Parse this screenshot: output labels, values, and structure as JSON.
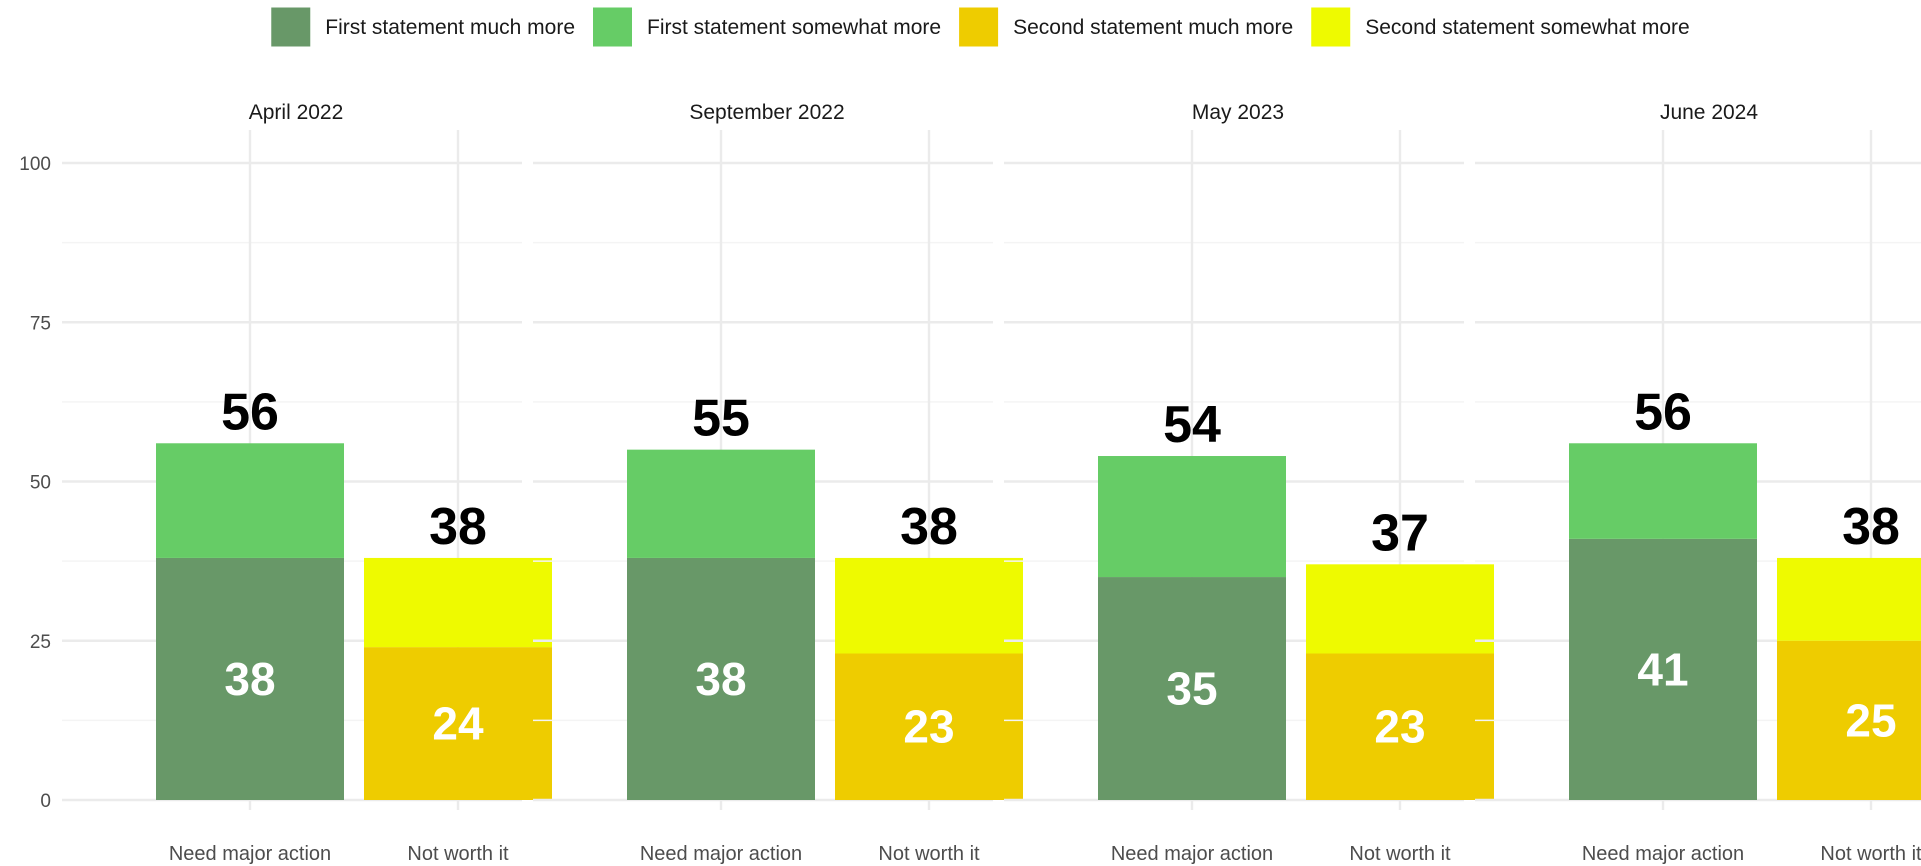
{
  "legend": {
    "items": [
      {
        "key": "fm",
        "label": "First statement much more",
        "color": "#689868"
      },
      {
        "key": "fs",
        "label": "First statement somewhat more",
        "color": "#66cc66"
      },
      {
        "key": "sm",
        "label": "Second statement much more",
        "color": "#eecc00"
      },
      {
        "key": "ss",
        "label": "Second statement somewhat more",
        "color": "#eefa00"
      }
    ]
  },
  "chart_data": {
    "type": "bar",
    "stacked": true,
    "faceted": true,
    "categories": [
      "Need major action",
      "Not worth it"
    ],
    "ylim": [
      0,
      100
    ],
    "yticks": [
      0,
      25,
      50,
      75,
      100
    ],
    "grid": true,
    "legend_position": "top",
    "facets": [
      {
        "title": "April 2022",
        "bars": [
          {
            "category": "Need major action",
            "segments": [
              {
                "key": "fm",
                "value": 38
              },
              {
                "key": "fs",
                "value": 18
              }
            ],
            "total": 56,
            "inner_label": 38
          },
          {
            "category": "Not worth it",
            "segments": [
              {
                "key": "sm",
                "value": 24
              },
              {
                "key": "ss",
                "value": 14
              }
            ],
            "total": 38,
            "inner_label": 24
          }
        ]
      },
      {
        "title": "September 2022",
        "bars": [
          {
            "category": "Need major action",
            "segments": [
              {
                "key": "fm",
                "value": 38
              },
              {
                "key": "fs",
                "value": 17
              }
            ],
            "total": 55,
            "inner_label": 38
          },
          {
            "category": "Not worth it",
            "segments": [
              {
                "key": "sm",
                "value": 23
              },
              {
                "key": "ss",
                "value": 15
              }
            ],
            "total": 38,
            "inner_label": 23
          }
        ]
      },
      {
        "title": "May 2023",
        "bars": [
          {
            "category": "Need major action",
            "segments": [
              {
                "key": "fm",
                "value": 35
              },
              {
                "key": "fs",
                "value": 19
              }
            ],
            "total": 54,
            "inner_label": 35
          },
          {
            "category": "Not worth it",
            "segments": [
              {
                "key": "sm",
                "value": 23
              },
              {
                "key": "ss",
                "value": 14
              }
            ],
            "total": 37,
            "inner_label": 23
          }
        ]
      },
      {
        "title": "June 2024",
        "bars": [
          {
            "category": "Need major action",
            "segments": [
              {
                "key": "fm",
                "value": 41
              },
              {
                "key": "fs",
                "value": 15
              }
            ],
            "total": 56,
            "inner_label": 41
          },
          {
            "category": "Not worth it",
            "segments": [
              {
                "key": "sm",
                "value": 25
              },
              {
                "key": "ss",
                "value": 13
              }
            ],
            "total": 38,
            "inner_label": 25
          }
        ]
      }
    ]
  }
}
